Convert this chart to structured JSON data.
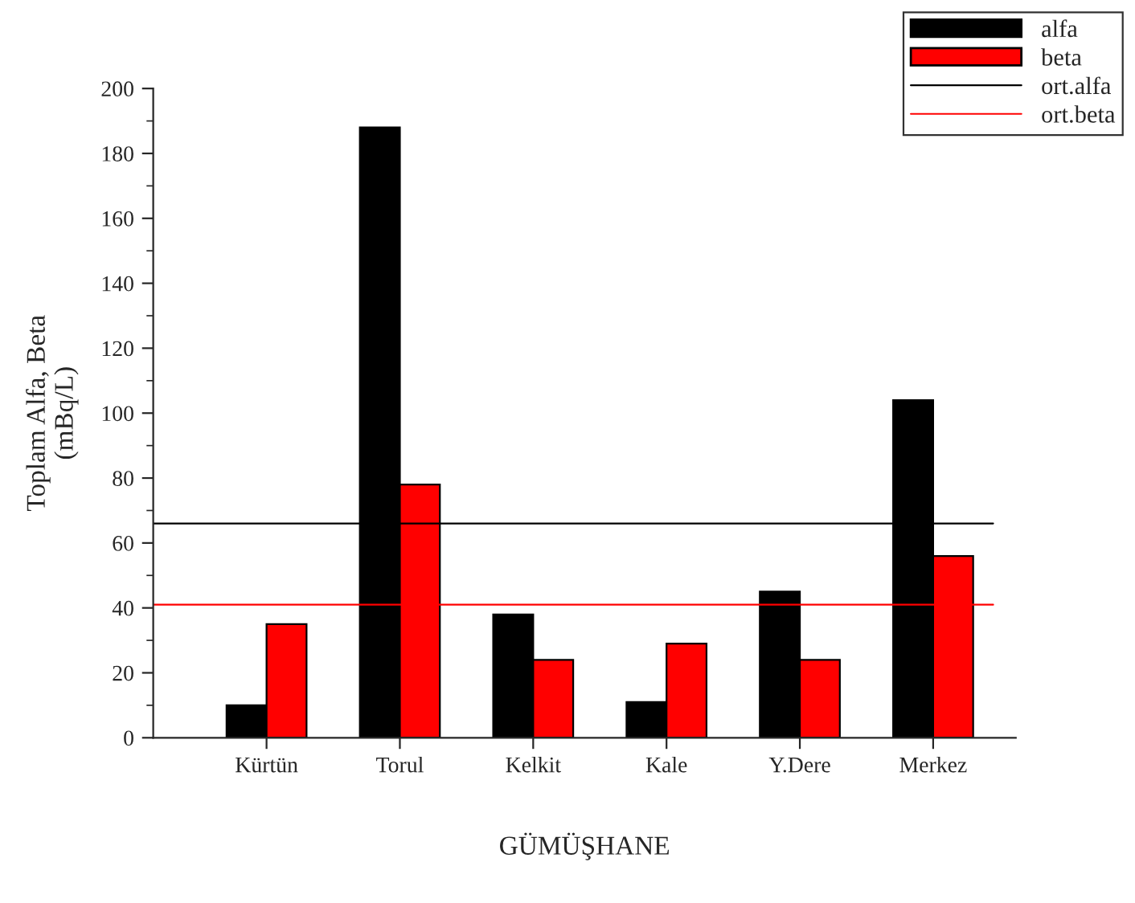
{
  "chart_data": {
    "type": "bar",
    "xlabel": "GÜMÜŞHANE",
    "ylabel": "Toplam Alfa, Beta\n(mBq/L)",
    "categories": [
      "Kürtün",
      "Torul",
      "Kelkit",
      "Kale",
      "Y.Dere",
      "Merkez"
    ],
    "series": [
      {
        "name": "alfa",
        "color": "#000000",
        "values": [
          10,
          188,
          38,
          11,
          45,
          104
        ]
      },
      {
        "name": "beta",
        "color": "#ff0000",
        "values": [
          35,
          78,
          24,
          29,
          24,
          56
        ]
      }
    ],
    "ref_lines": [
      {
        "axis": "y",
        "value": 66,
        "label": "ort.alfa",
        "color": "#000000"
      },
      {
        "axis": "y",
        "value": 41,
        "label": "ort.beta",
        "color": "#ff0000"
      }
    ],
    "ylim": [
      0,
      200
    ],
    "yticks": [
      0,
      20,
      40,
      60,
      80,
      100,
      120,
      140,
      160,
      180,
      200
    ],
    "grid": false,
    "legend": "top right"
  }
}
